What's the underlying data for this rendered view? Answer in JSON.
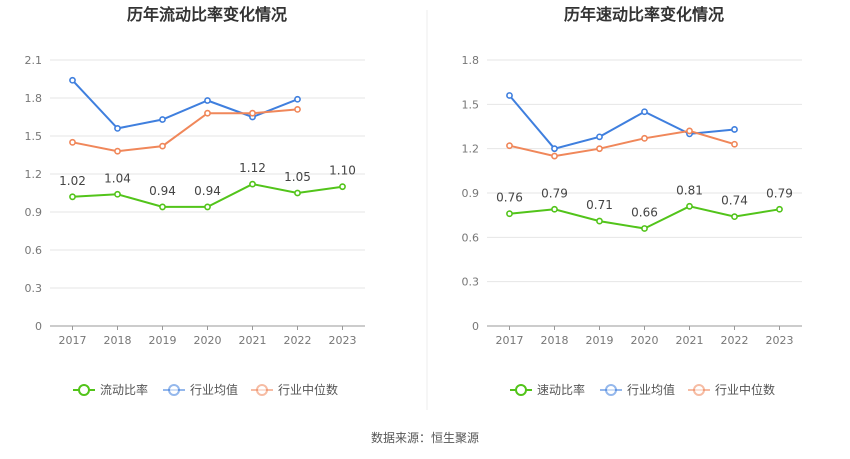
{
  "footer": {
    "source": "数据来源：恒生聚源"
  },
  "chart_data": [
    {
      "type": "line",
      "title": "历年流动比率变化情况",
      "categories": [
        "2017",
        "2018",
        "2019",
        "2020",
        "2021",
        "2022",
        "2023"
      ],
      "y_ticks": [
        "0",
        "0.3",
        "0.6",
        "0.9",
        "1.2",
        "1.5",
        "1.8",
        "2.1"
      ],
      "ylim": [
        0,
        2.1
      ],
      "grid": true,
      "legend_position": "bottom",
      "series": [
        {
          "name": "流动比率",
          "color": "#52c41a",
          "labeled": true,
          "values": [
            1.02,
            1.04,
            0.94,
            0.94,
            1.12,
            1.05,
            1.1
          ],
          "labels": [
            "1.02",
            "1.04",
            "0.94",
            "0.94",
            "1.12",
            "1.05",
            "1.10"
          ]
        },
        {
          "name": "行业均值",
          "color": "#3f7fde",
          "labeled": false,
          "values": [
            1.94,
            1.56,
            1.63,
            1.78,
            1.65,
            1.79,
            null
          ]
        },
        {
          "name": "行业中位数",
          "color": "#f0875a",
          "labeled": false,
          "values": [
            1.45,
            1.38,
            1.42,
            1.68,
            1.68,
            1.71,
            null
          ]
        }
      ]
    },
    {
      "type": "line",
      "title": "历年速动比率变化情况",
      "categories": [
        "2017",
        "2018",
        "2019",
        "2020",
        "2021",
        "2022",
        "2023"
      ],
      "y_ticks": [
        "0",
        "0.3",
        "0.6",
        "0.9",
        "1.2",
        "1.5",
        "1.8"
      ],
      "ylim": [
        0,
        1.8
      ],
      "grid": true,
      "legend_position": "bottom",
      "series": [
        {
          "name": "速动比率",
          "color": "#52c41a",
          "labeled": true,
          "values": [
            0.76,
            0.79,
            0.71,
            0.66,
            0.81,
            0.74,
            0.79
          ],
          "labels": [
            "0.76",
            "0.79",
            "0.71",
            "0.66",
            "0.81",
            "0.74",
            "0.79"
          ]
        },
        {
          "name": "行业均值",
          "color": "#3f7fde",
          "labeled": false,
          "values": [
            1.56,
            1.2,
            1.28,
            1.45,
            1.3,
            1.33,
            null
          ]
        },
        {
          "name": "行业中位数",
          "color": "#f0875a",
          "labeled": false,
          "values": [
            1.22,
            1.15,
            1.2,
            1.27,
            1.32,
            1.23,
            null
          ]
        }
      ]
    }
  ]
}
